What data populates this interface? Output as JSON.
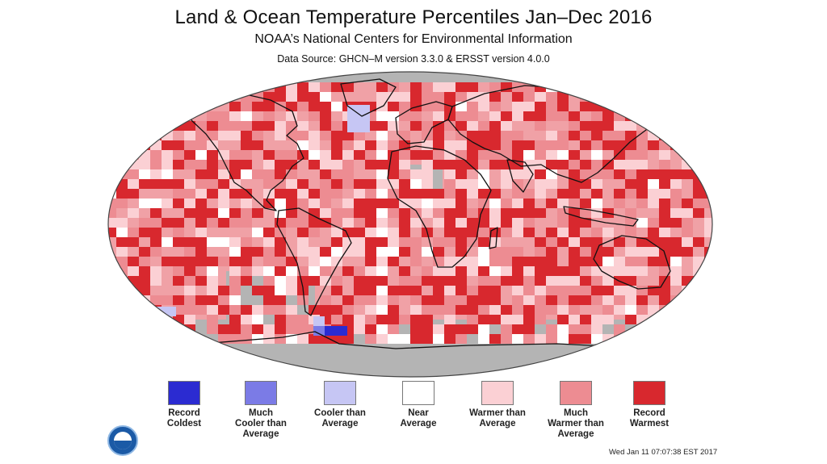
{
  "header": {
    "title": "Land & Ocean Temperature Percentiles Jan–Dec 2016",
    "subtitle": "NOAA’s National Centers for Environmental Information",
    "source": "Data Source: GHCN–M version 3.3.0 & ERSST version 4.0.0"
  },
  "legend": [
    {
      "lines": [
        "Record",
        "Coldest"
      ],
      "color": "#2b2bd1"
    },
    {
      "lines": [
        "Much",
        "Cooler than",
        "Average"
      ],
      "color": "#7b7be6"
    },
    {
      "lines": [
        "Cooler than",
        "Average"
      ],
      "color": "#c6c6f4"
    },
    {
      "lines": [
        "Near",
        "Average"
      ],
      "color": "#ffffff"
    },
    {
      "lines": [
        "Warmer than",
        "Average"
      ],
      "color": "#fbd0d4"
    },
    {
      "lines": [
        "Much",
        "Warmer than",
        "Average"
      ],
      "color": "#ed8c92"
    },
    {
      "lines": [
        "Record",
        "Warmest"
      ],
      "color": "#d8282e"
    }
  ],
  "map_colors": {
    "no_data": "#b4b4b4",
    "base": "#f0a1a6",
    "outline": "#111111"
  },
  "timestamp": "Wed Jan 11 07:07:38 EST 2017"
}
